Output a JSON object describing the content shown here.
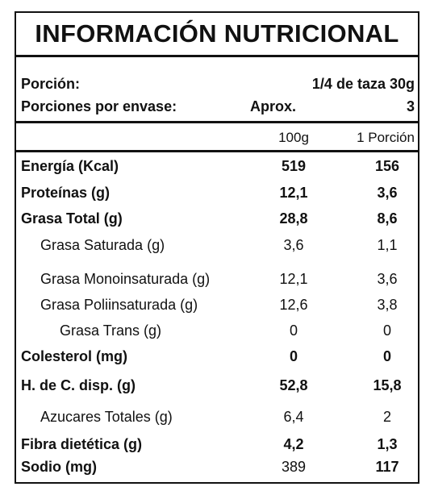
{
  "title": "INFORMACIÓN NUTRICIONAL",
  "serving": {
    "portion_label": "Porción:",
    "portion_value": "1/4 de taza  30g",
    "servings_label": "Porciones por envase:",
    "servings_approx": "Aprox.",
    "servings_value": "3"
  },
  "columns": {
    "per100": "100g",
    "perPortion": "1 Porción"
  },
  "rows": [
    {
      "label": "Energía (Kcal)",
      "per100": "519",
      "perPortion": "156"
    },
    {
      "label": "Proteínas (g)",
      "per100": "12,1",
      "perPortion": "3,6"
    },
    {
      "label": "Grasa Total (g)",
      "per100": "28,8",
      "perPortion": "8,6"
    },
    {
      "label": "Grasa Saturada (g)",
      "per100": "3,6",
      "perPortion": "1,1"
    },
    {
      "label": "Grasa Monoinsaturada (g)",
      "per100": "12,1",
      "perPortion": "3,6"
    },
    {
      "label": "Grasa Poliinsaturada (g)",
      "per100": "12,6",
      "perPortion": "3,8"
    },
    {
      "label": "Grasa Trans (g)",
      "per100": "0",
      "perPortion": "0"
    },
    {
      "label": "Colesterol (mg)",
      "per100": "0",
      "perPortion": "0"
    },
    {
      "label": "H. de C. disp. (g)",
      "per100": "52,8",
      "perPortion": "15,8"
    },
    {
      "label": "Azucares Totales (g)",
      "per100": "6,4",
      "perPortion": "2"
    },
    {
      "label": "Fibra dietética (g)",
      "per100": "4,2",
      "perPortion": "1,3"
    },
    {
      "label": "Sodio (mg)",
      "per100": "389",
      "perPortion": "117"
    }
  ]
}
